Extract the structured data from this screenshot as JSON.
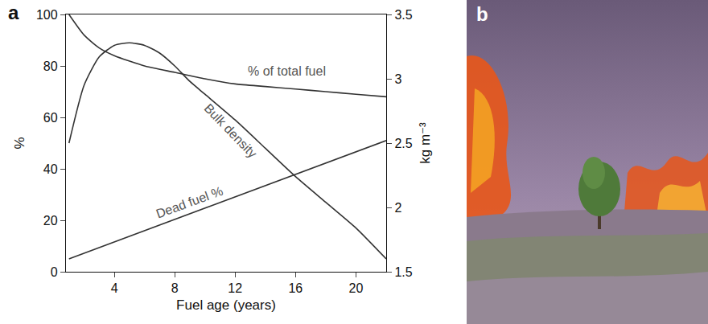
{
  "chart_data": {
    "type": "line",
    "panel_label": "a",
    "x_label": "Fuel age (years)",
    "y_label": "%",
    "y2_label": "kg m⁻³",
    "xlim": [
      0.8,
      22
    ],
    "xticks": [
      4,
      8,
      12,
      16,
      20
    ],
    "ylim": [
      0,
      100
    ],
    "yticks": [
      0,
      20,
      40,
      60,
      80,
      100
    ],
    "y2lim": [
      1.5,
      3.5
    ],
    "y2ticks": [
      1.5,
      2,
      2.5,
      3,
      3.5
    ],
    "grid": false,
    "series": [
      {
        "name": "% of total fuel",
        "color": "#333333",
        "x": [
          1,
          2,
          3,
          4,
          6,
          8,
          10,
          12,
          14,
          16,
          18,
          20,
          22
        ],
        "values": [
          100,
          92,
          87,
          84,
          80,
          77.5,
          75,
          73,
          72,
          71,
          70,
          69,
          68
        ]
      },
      {
        "name": "Dead fuel %",
        "color": "#333333",
        "x": [
          1,
          22
        ],
        "values": [
          5,
          51
        ]
      },
      {
        "name": "Bulk density",
        "color": "#333333",
        "axis": "y2",
        "x": [
          1,
          2,
          3,
          4,
          5,
          6,
          7,
          8,
          9,
          10,
          12,
          14,
          16,
          18,
          20,
          22
        ],
        "values": [
          2.5,
          2.95,
          3.17,
          3.26,
          3.28,
          3.26,
          3.2,
          3.1,
          2.98,
          2.88,
          2.68,
          2.46,
          2.24,
          2.04,
          1.84,
          1.6
        ]
      }
    ],
    "annotations": [
      {
        "text": "% of total fuel",
        "x": 15.4,
        "y": 78
      },
      {
        "text": "Bulk density",
        "x": 11.7,
        "y": 2.6,
        "axis": "y2"
      },
      {
        "text": "Dead fuel %",
        "x": 9,
        "y": 27
      }
    ]
  },
  "photo": {
    "panel_label": "b"
  }
}
